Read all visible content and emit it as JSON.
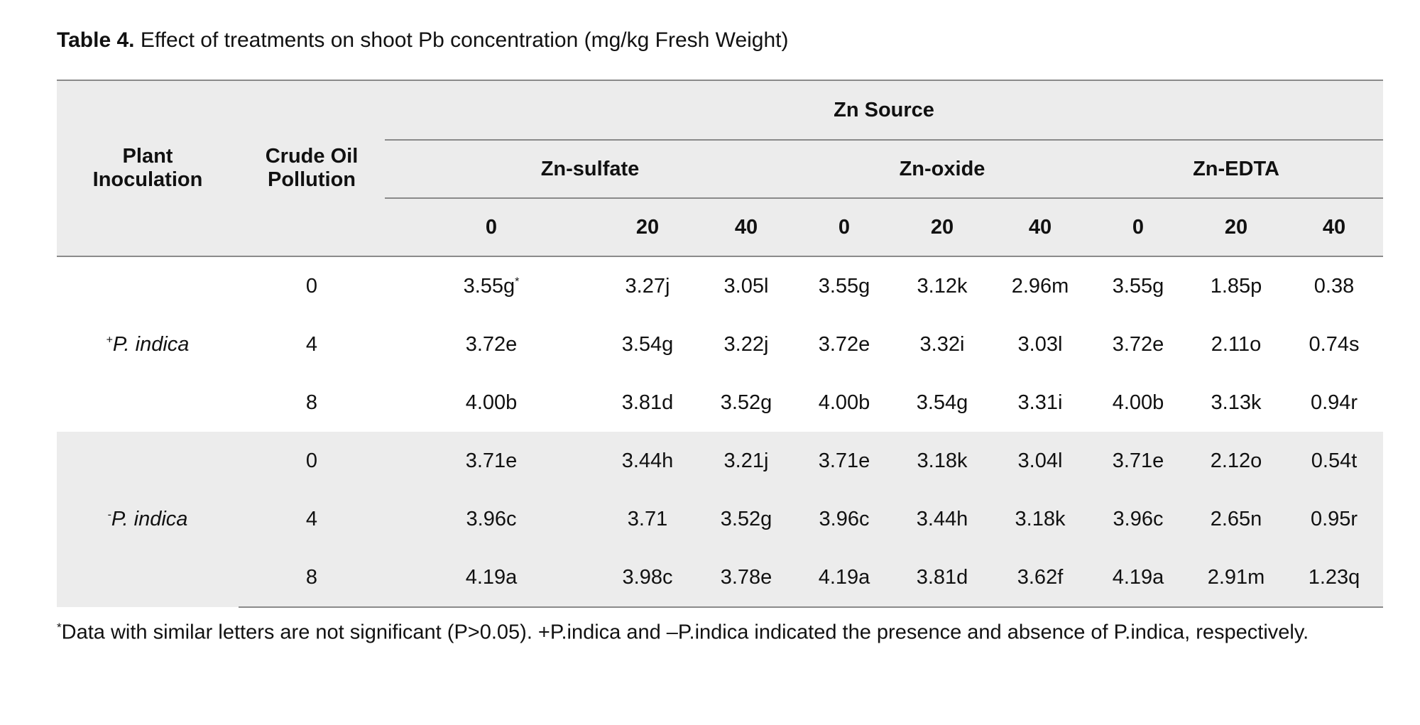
{
  "caption": {
    "label": "Table 4.",
    "text": " Effect of treatments on shoot Pb concentration (mg/kg Fresh Weight)"
  },
  "headers": {
    "plant_inoculation_1": "Plant",
    "plant_inoculation_2": "Inoculation",
    "crude_oil_1": "Crude Oil",
    "crude_oil_2": "Pollution",
    "zn_source": "Zn Source",
    "sources": [
      "Zn-sulfate",
      "Zn-oxide",
      "Zn-EDTA"
    ],
    "levels": [
      "0",
      "20",
      "40",
      "0",
      "20",
      "40",
      "0",
      "20",
      "40"
    ]
  },
  "groups": [
    {
      "sign": "+",
      "name": "P. indica",
      "rows": [
        {
          "pollution": "0",
          "values": [
            "3.55g",
            "3.27j",
            "3.05l",
            "3.55g",
            "3.12k",
            "2.96m",
            "3.55g",
            "1.85p",
            "0.38"
          ]
        },
        {
          "pollution": "4",
          "values": [
            "3.72e",
            "3.54g",
            "3.22j",
            "3.72e",
            "3.32i",
            "3.03l",
            "3.72e",
            "2.11o",
            "0.74s"
          ]
        },
        {
          "pollution": "8",
          "values": [
            "4.00b",
            "3.81d",
            "3.52g",
            "4.00b",
            "3.54g",
            "3.31i",
            "4.00b",
            "3.13k",
            "0.94r"
          ]
        }
      ]
    },
    {
      "sign": "-",
      "name": "P. indica",
      "rows": [
        {
          "pollution": "0",
          "values": [
            "3.71e",
            "3.44h",
            "3.21j",
            "3.71e",
            "3.18k",
            "3.04l",
            "3.71e",
            "2.12o",
            "0.54t"
          ]
        },
        {
          "pollution": "4",
          "values": [
            "3.96c",
            "3.71",
            "3.52g",
            "3.96c",
            "3.44h",
            "3.18k",
            "3.96c",
            "2.65n",
            "0.95r"
          ]
        },
        {
          "pollution": "8",
          "values": [
            "4.19a",
            "3.98c",
            "3.78e",
            "4.19a",
            "3.81d",
            "3.62f",
            "4.19a",
            "2.91m",
            "1.23q"
          ]
        }
      ]
    }
  ],
  "first_value_mark": "*",
  "footnote": {
    "mark": "*",
    "text": "Data with similar letters are not significant (P>0.05). +P.indica and –P.indica indicated the presence and absence of P.indica, respectively."
  }
}
